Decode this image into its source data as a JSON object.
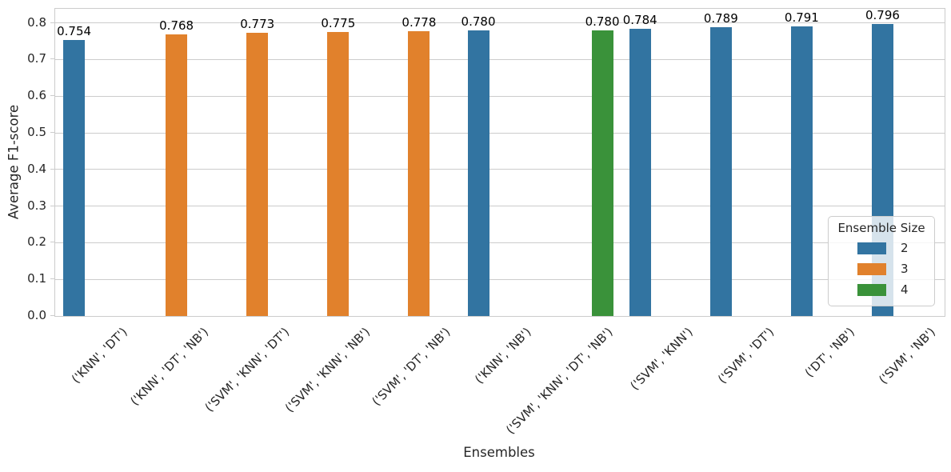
{
  "chart_data": {
    "type": "bar",
    "title": "",
    "xlabel": "Ensembles",
    "ylabel": "Average F1-score",
    "categories": [
      "('KNN', 'DT')",
      "('KNN', 'DT', 'NB')",
      "('SVM', 'KNN', 'DT')",
      "('SVM', 'KNN', 'NB')",
      "('SVM', 'DT', 'NB')",
      "('KNN', 'NB')",
      "('SVM', 'KNN', 'DT', 'NB')",
      "('SVM', 'KNN')",
      "('SVM', 'DT')",
      "('DT', 'NB')",
      "('SVM', 'NB')"
    ],
    "values": [
      0.754,
      0.768,
      0.773,
      0.775,
      0.778,
      0.78,
      0.78,
      0.784,
      0.789,
      0.791,
      0.796
    ],
    "bar_labels": [
      "0.754",
      "0.768",
      "0.773",
      "0.775",
      "0.778",
      "0.780",
      "0.780",
      "0.784",
      "0.789",
      "0.791",
      "0.796"
    ],
    "ensemble_sizes": [
      2,
      3,
      3,
      3,
      3,
      2,
      4,
      2,
      2,
      2,
      2
    ],
    "y_ticks": [
      "0.0",
      "0.1",
      "0.2",
      "0.3",
      "0.4",
      "0.5",
      "0.6",
      "0.7",
      "0.8"
    ],
    "ylim": [
      0,
      0.838
    ],
    "grid": "horizontal",
    "legend": {
      "title": "Ensemble Size",
      "position": "center-right",
      "entries": [
        {
          "label": "2",
          "color": "#3274a1"
        },
        {
          "label": "3",
          "color": "#e1812c"
        },
        {
          "label": "4",
          "color": "#3a923a"
        }
      ]
    },
    "size_colors": {
      "2": "#3274a1",
      "3": "#e1812c",
      "4": "#3a923a"
    },
    "style_colors": {
      "grid": "#cccccc",
      "spine": "#cccccc",
      "text": "#262626",
      "background": "#ffffff"
    }
  }
}
